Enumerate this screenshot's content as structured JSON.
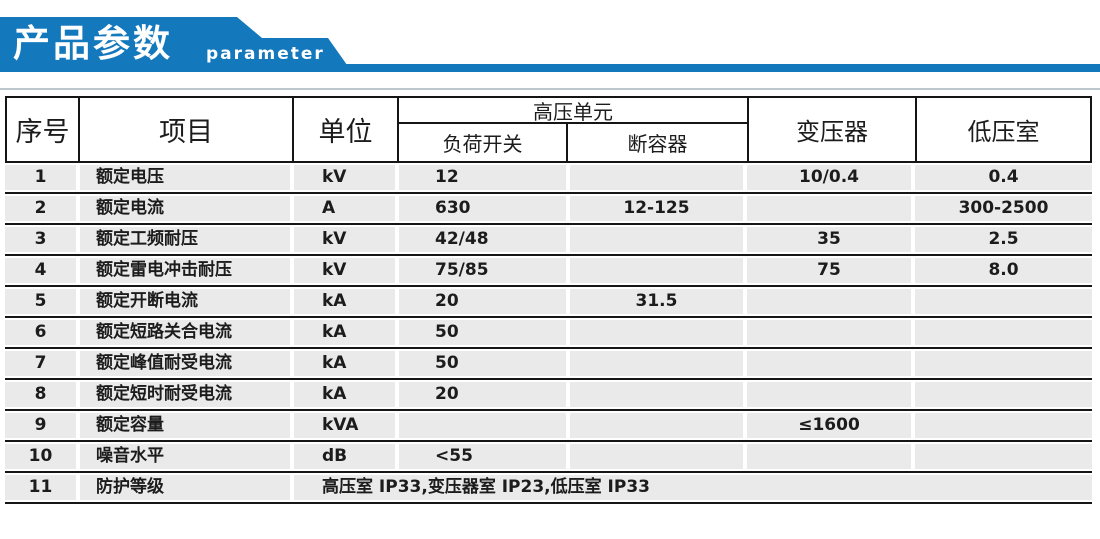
{
  "banner": {
    "title": "产品参数",
    "subtitle": "parameter"
  },
  "colors": {
    "banner_blue": "#1478bd",
    "divider_gray": "#bcc6cd",
    "row_gray": "#eaeaea",
    "border_black": "#151515"
  },
  "table": {
    "header": {
      "col_no": "序号",
      "col_item": "项目",
      "col_unit": "单位",
      "col_hv_unit": "高压单元",
      "col_load_switch": "负荷开关",
      "col_breaker": "断容器",
      "col_transformer": "变压器",
      "col_lv_room": "低压室"
    },
    "rows": [
      {
        "no": "1",
        "item": "额定电压",
        "unit": "kV",
        "load_switch": "12",
        "breaker": "",
        "transformer": "10/0.4",
        "lv": "0.4"
      },
      {
        "no": "2",
        "item": "额定电流",
        "unit": "A",
        "load_switch": "630",
        "breaker": "12-125",
        "transformer": "",
        "lv": "300-2500"
      },
      {
        "no": "3",
        "item": "额定工频耐压",
        "unit": "kV",
        "load_switch": "42/48",
        "breaker": "",
        "transformer": "35",
        "lv": "2.5"
      },
      {
        "no": "4",
        "item": "额定雷电冲击耐压",
        "unit": "kV",
        "load_switch": "75/85",
        "breaker": "",
        "transformer": "75",
        "lv": "8.0"
      },
      {
        "no": "5",
        "item": "额定开断电流",
        "unit": "kA",
        "load_switch": "20",
        "breaker": "31.5",
        "transformer": "",
        "lv": ""
      },
      {
        "no": "6",
        "item": "额定短路关合电流",
        "unit": "kA",
        "load_switch": "50",
        "breaker": "",
        "transformer": "",
        "lv": ""
      },
      {
        "no": "7",
        "item": "额定峰值耐受电流",
        "unit": "kA",
        "load_switch": "50",
        "breaker": "",
        "transformer": "",
        "lv": ""
      },
      {
        "no": "8",
        "item": "额定短时耐受电流",
        "unit": "kA",
        "load_switch": "20",
        "breaker": "",
        "transformer": "",
        "lv": ""
      },
      {
        "no": "9",
        "item": "额定容量",
        "unit": "kVA",
        "load_switch": "",
        "breaker": "",
        "transformer": "≤1600",
        "lv": ""
      },
      {
        "no": "10",
        "item": "噪音水平",
        "unit": "dB",
        "load_switch": "<55",
        "breaker": "",
        "transformer": "",
        "lv": ""
      },
      {
        "no": "11",
        "item": "防护等级",
        "merged": "高压室 IP33,变压器室 IP23,低压室 IP33"
      }
    ]
  }
}
